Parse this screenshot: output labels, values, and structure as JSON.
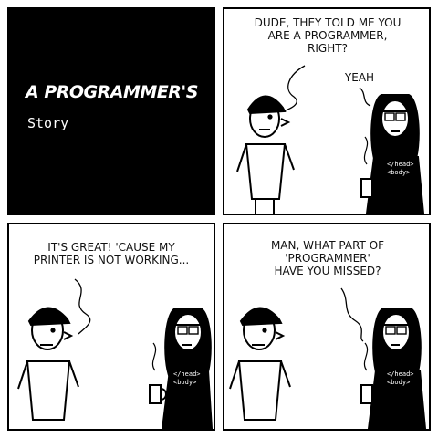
{
  "panel1": {
    "title": "A PROGRAMMER'S",
    "subtitle": "Story"
  },
  "panel2": {
    "speech_a": "DUDE, THEY TOLD ME YOU\nARE A PROGRAMMER,\nRIGHT?",
    "speech_b": "YEAH"
  },
  "panel3": {
    "speech_a": "IT'S GREAT! 'CAUSE MY\nPRINTER IS NOT WORKING..."
  },
  "panel4": {
    "speech_a": "MAN, WHAT PART OF\n'PROGRAMMER'\nHAVE YOU MISSED?"
  },
  "shirt": {
    "line1": "</head>",
    "line2": "<body>"
  },
  "colors": {
    "ink": "#000000",
    "paper": "#ffffff"
  }
}
